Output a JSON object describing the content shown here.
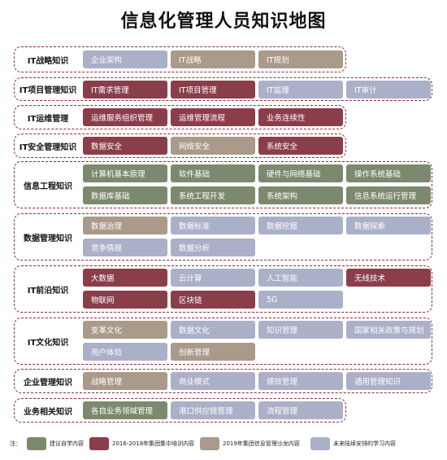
{
  "title": "信息化管理人员知识地图",
  "colors": {
    "self_study": "#7b8a6e",
    "training_2016_2018": "#8a3e4a",
    "salon_2019": "#a99a89",
    "future": "#aab0c8"
  },
  "rows": [
    {
      "label": "IT战略知识",
      "cells": [
        {
          "text": "企业架构",
          "cat": "future"
        },
        {
          "text": "IT战略",
          "cat": "salon"
        },
        {
          "text": "IT规划",
          "cat": "salon"
        }
      ]
    },
    {
      "label": "IT项目管理知识",
      "cells": [
        {
          "text": "IT需求管理",
          "cat": "train"
        },
        {
          "text": "IT项目管理",
          "cat": "train"
        },
        {
          "text": "IT监理",
          "cat": "future"
        },
        {
          "text": "IT审计",
          "cat": "future"
        }
      ]
    },
    {
      "label": "IT运维管理",
      "cells": [
        {
          "text": "运维服务组织管理",
          "cat": "train"
        },
        {
          "text": "运维管理流程",
          "cat": "train"
        },
        {
          "text": "业务连续性",
          "cat": "train"
        }
      ]
    },
    {
      "label": "IT安全管理知识",
      "cells": [
        {
          "text": "数据安全",
          "cat": "train"
        },
        {
          "text": "网络安全",
          "cat": "salon"
        },
        {
          "text": "系统安全",
          "cat": "train"
        }
      ]
    },
    {
      "label": "信息工程知识",
      "cells": [
        {
          "text": "计算机基本原理",
          "cat": "self"
        },
        {
          "text": "软件基础",
          "cat": "self"
        },
        {
          "text": "硬件与网络基础",
          "cat": "self"
        },
        {
          "text": "操作系统基础",
          "cat": "self"
        },
        {
          "text": "数据库基础",
          "cat": "self"
        },
        {
          "text": "系统工程开发",
          "cat": "self"
        },
        {
          "text": "系统架构",
          "cat": "self"
        },
        {
          "text": "信息系统运行管理",
          "cat": "self"
        }
      ]
    },
    {
      "label": "数据管理知识",
      "cells": [
        {
          "text": "数据治理",
          "cat": "salon"
        },
        {
          "text": "数据标准",
          "cat": "future"
        },
        {
          "text": "数据挖掘",
          "cat": "future"
        },
        {
          "text": "数据探索",
          "cat": "future"
        },
        {
          "text": "竞争情报",
          "cat": "future"
        },
        {
          "text": "数据分析",
          "cat": "future"
        }
      ]
    },
    {
      "label": "IT前沿知识",
      "cells": [
        {
          "text": "大数据",
          "cat": "train"
        },
        {
          "text": "云计算",
          "cat": "future"
        },
        {
          "text": "人工智能",
          "cat": "future"
        },
        {
          "text": "无线技术",
          "cat": "train"
        },
        {
          "text": "物联网",
          "cat": "train"
        },
        {
          "text": "区块链",
          "cat": "train"
        },
        {
          "text": "5G",
          "cat": "future"
        }
      ]
    },
    {
      "label": "IT文化知识",
      "cells": [
        {
          "text": "变革文化",
          "cat": "salon"
        },
        {
          "text": "数据文化",
          "cat": "future"
        },
        {
          "text": "知识管理",
          "cat": "future"
        },
        {
          "text": "国家相关政策与规划",
          "cat": "future"
        },
        {
          "text": "用户体验",
          "cat": "future"
        },
        {
          "text": "创新管理",
          "cat": "salon"
        }
      ]
    },
    {
      "label": "企业管理知识",
      "cells": [
        {
          "text": "战略管理",
          "cat": "salon"
        },
        {
          "text": "商业模式",
          "cat": "future"
        },
        {
          "text": "绩效管理",
          "cat": "future"
        },
        {
          "text": "通用管理知识",
          "cat": "future"
        }
      ]
    },
    {
      "label": "业务相关知识",
      "cells": [
        {
          "text": "各自业务领域管理",
          "cat": "self"
        },
        {
          "text": "港口供应链管理",
          "cat": "future"
        },
        {
          "text": "流程管理",
          "cat": "future"
        }
      ]
    }
  ],
  "legend": {
    "note": "注：",
    "items": [
      {
        "text": "建议自学内容",
        "cat": "self"
      },
      {
        "text": "2016-2018年集团集中培训内容",
        "cat": "train"
      },
      {
        "text": "2019年集团信息管理沙龙内容",
        "cat": "salon"
      },
      {
        "text": "未来陆续安排的学习内容",
        "cat": "future"
      }
    ]
  }
}
